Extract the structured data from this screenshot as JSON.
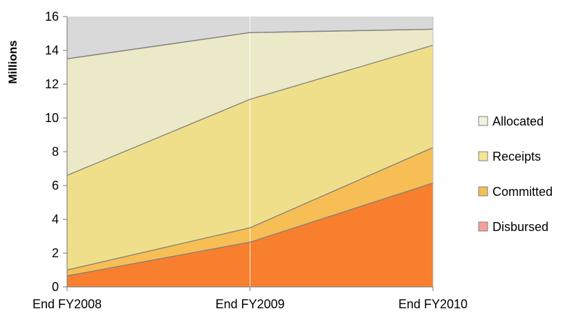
{
  "chart_data": {
    "type": "area",
    "stacked": true,
    "title": "",
    "xlabel": "",
    "ylabel": "Millions",
    "ylim": [
      0,
      16
    ],
    "yticks": [
      0,
      2,
      4,
      6,
      8,
      10,
      12,
      14,
      16
    ],
    "categories": [
      "End FY2008",
      "End FY2009",
      "End FY2010"
    ],
    "series": [
      {
        "name": "Disbursed",
        "values": [
          0.65,
          2.65,
          6.15
        ],
        "color": "#F77F2E",
        "legend_color": "#F4A09A"
      },
      {
        "name": "Committed",
        "values": [
          0.35,
          0.85,
          2.1
        ],
        "color": "#F6BE55",
        "legend_color": "#F6BE55"
      },
      {
        "name": "Receipts",
        "values": [
          5.6,
          7.6,
          6.05
        ],
        "color": "#F0DF8A",
        "legend_color": "#F4E696"
      },
      {
        "name": "Allocated",
        "values": [
          6.9,
          3.95,
          0.95
        ],
        "color": "#ECE9C9",
        "legend_color": "#F3F2E1"
      }
    ],
    "top_area": {
      "values": [
        13.5,
        15.05,
        15.25
      ],
      "color": "#D9D9D9"
    },
    "grid": true,
    "legend_position": "right"
  }
}
